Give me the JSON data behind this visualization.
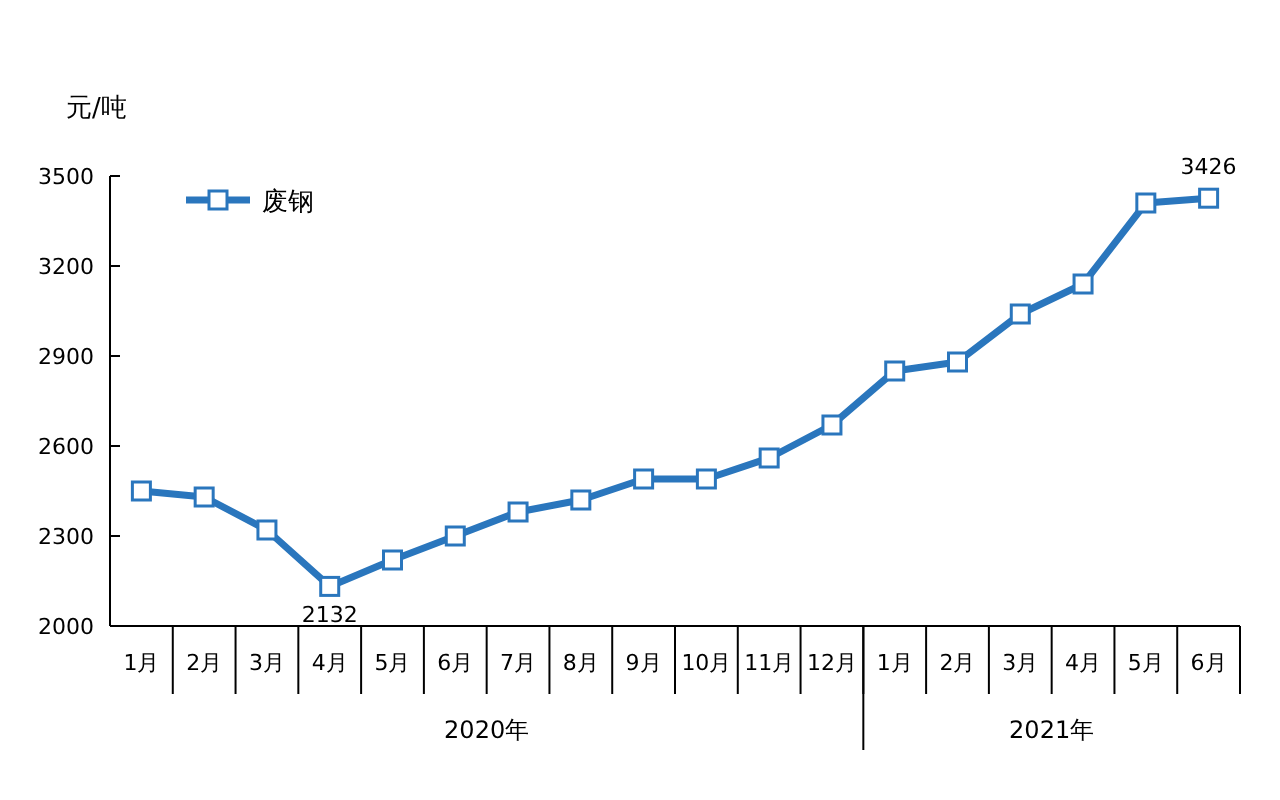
{
  "chart_data": {
    "type": "line",
    "ylabel": "元/吨",
    "categories": [
      "1月",
      "2月",
      "3月",
      "4月",
      "5月",
      "6月",
      "7月",
      "8月",
      "9月",
      "10月",
      "11月",
      "12月",
      "1月",
      "2月",
      "3月",
      "4月",
      "5月",
      "6月"
    ],
    "series": [
      {
        "name": "废钢",
        "color": "#2a76bd",
        "values": [
          2450,
          2430,
          2320,
          2132,
          2220,
          2300,
          2380,
          2420,
          2490,
          2490,
          2560,
          2670,
          2850,
          2880,
          3040,
          3140,
          3410,
          3426
        ],
        "value_labels": [
          null,
          null,
          null,
          "2132",
          null,
          null,
          null,
          null,
          null,
          null,
          null,
          null,
          null,
          null,
          null,
          null,
          null,
          "3426"
        ]
      }
    ],
    "annotations": [
      "2020年",
      "2021年"
    ],
    "ylim": [
      2000,
      3500
    ],
    "yticks": [
      2000,
      2300,
      2600,
      2900,
      3200,
      3500
    ],
    "legend": "top left",
    "marker": "square",
    "grid": false
  }
}
